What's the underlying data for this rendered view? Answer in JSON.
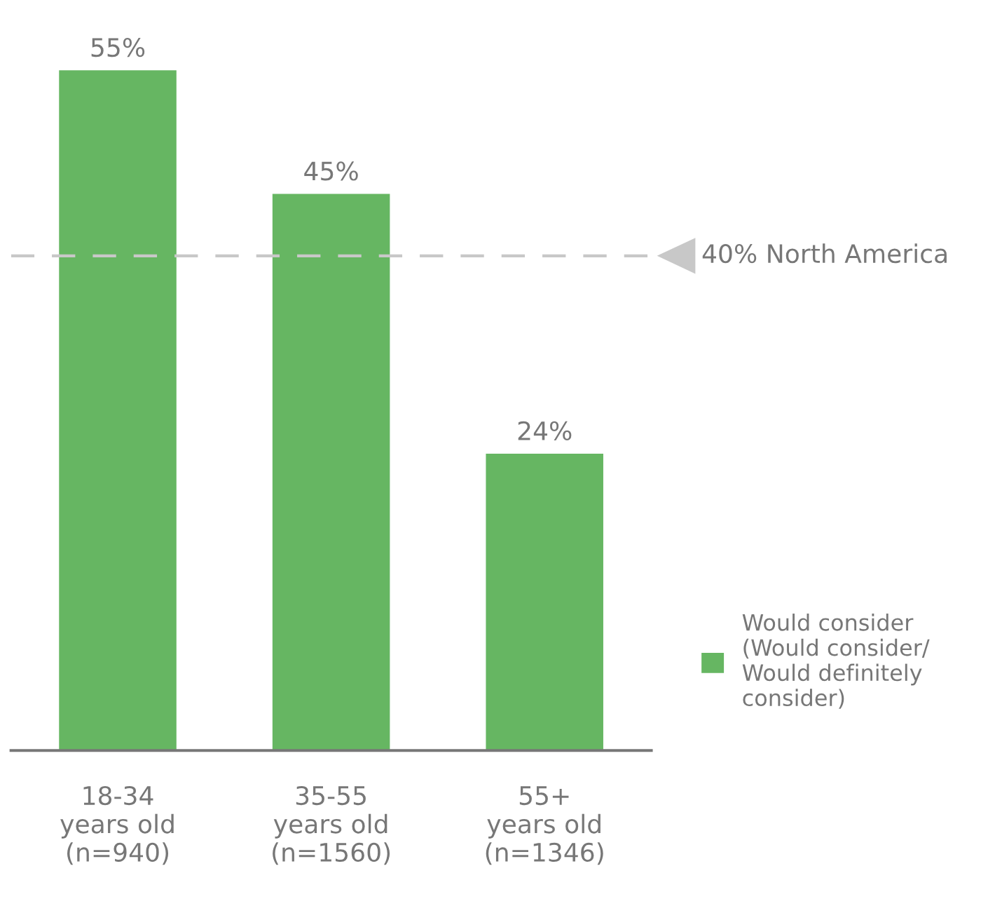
{
  "chart_data": {
    "type": "bar",
    "categories": [
      "18-34\nyears old\n(n=940)",
      "35-55\nyears old\n(n=1560)",
      "55+\nyears old\n(n=1346)"
    ],
    "series": [
      {
        "name": "Would consider\n(Would consider/\nWould definitely\nconsider)",
        "color": "#66b662",
        "values": [
          55,
          45,
          24
        ],
        "value_labels": [
          "55%",
          "45%",
          "24%"
        ]
      }
    ],
    "ref_lines": [
      {
        "axis": "y",
        "value": 40,
        "label": "40% North America",
        "color": "#c8c8c8",
        "line_style": "dashed"
      }
    ],
    "legend": "right",
    "grid": false
  }
}
